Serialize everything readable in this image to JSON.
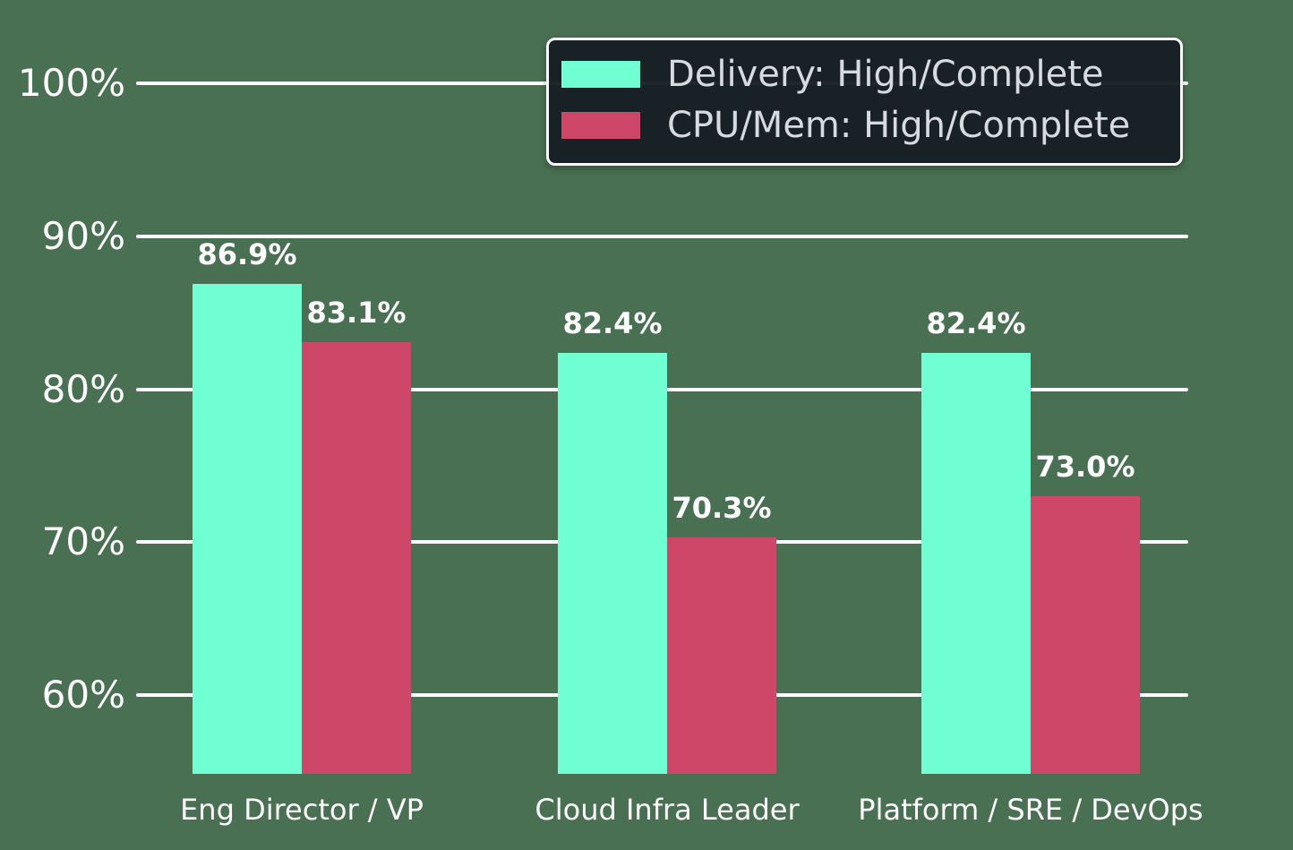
{
  "colors": {
    "background": "#497053",
    "gridline": "#ffffff",
    "tick_label_text": "#ffffff",
    "bar_value_label_text": "#ffffff",
    "category_label_text": "#ffffff",
    "legend_background": "rgba(22, 30, 35, 0.96)",
    "legend_border": "#fbfbfb",
    "legend_text": "#d7dbde"
  },
  "chart_data": {
    "type": "bar",
    "title": "",
    "xlabel": "",
    "ylabel": "",
    "categories": [
      "Eng Director / VP",
      "Cloud Infra Leader",
      "Platform / SRE / DevOps"
    ],
    "series": [
      {
        "name": "Delivery: High/Complete",
        "color": "#70FFD2",
        "values": [
          86.9,
          82.4,
          82.4
        ]
      },
      {
        "name": "CPU/Mem: High/Complete",
        "color": "#CE4768",
        "values": [
          83.1,
          70.3,
          73.0
        ]
      }
    ],
    "value_labels": [
      [
        "86.9%",
        "82.4%",
        "82.4%"
      ],
      [
        "83.1%",
        "70.3%",
        "73.0%"
      ]
    ],
    "yticks": [
      {
        "value": 100,
        "label": "100%"
      },
      {
        "value": 90,
        "label": "90%"
      },
      {
        "value": 80,
        "label": "80%"
      },
      {
        "value": 70,
        "label": "70%"
      },
      {
        "value": 60,
        "label": "60%"
      }
    ],
    "ylim": [
      54.9,
      105.4
    ],
    "grid": true,
    "legend_position": "upper right"
  }
}
